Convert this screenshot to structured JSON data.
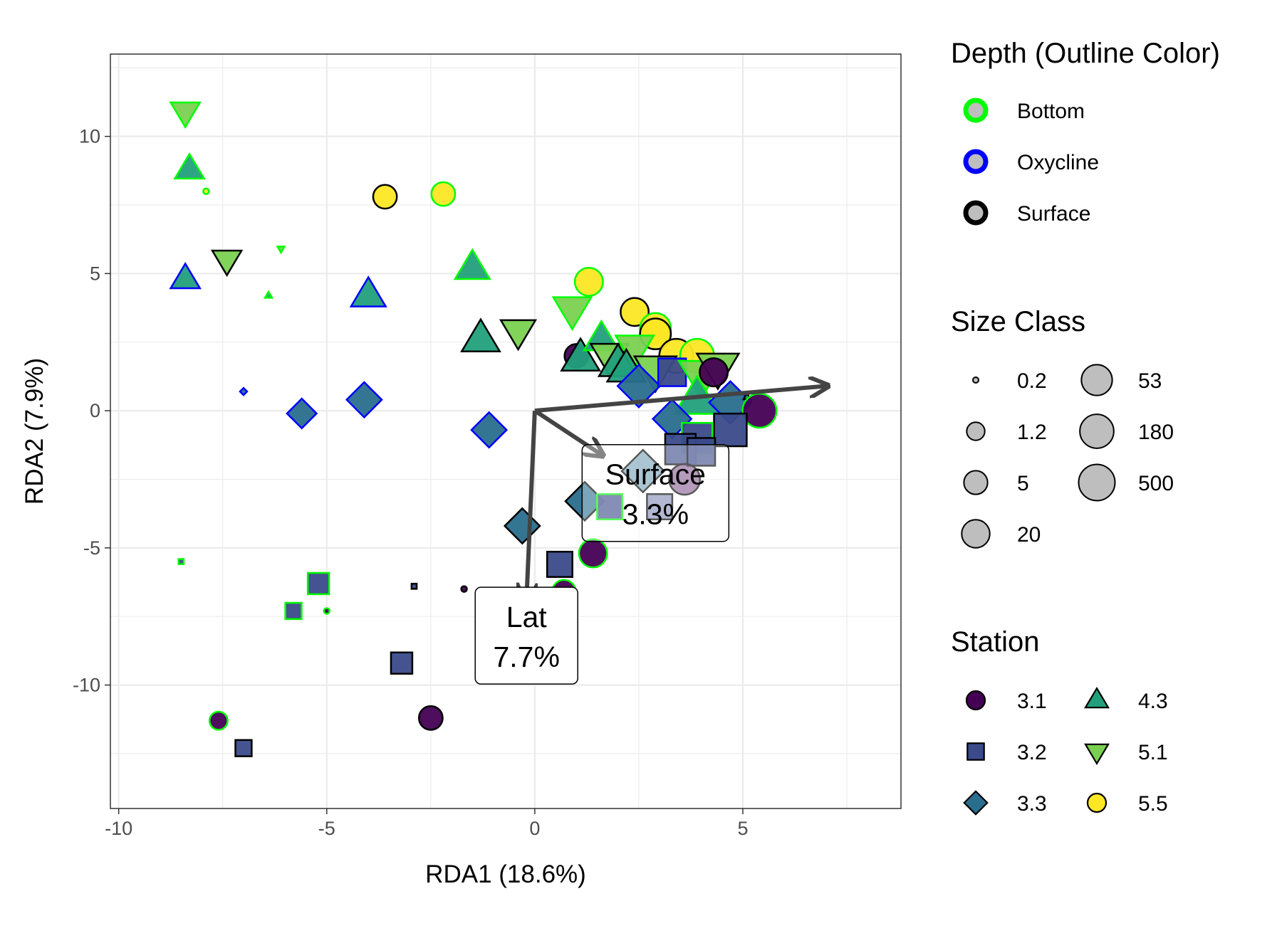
{
  "chart_data": {
    "type": "scatter",
    "xlabel": "RDA1 (18.6%)",
    "ylabel": "RDA2 (7.9%)",
    "xlim": [
      -10.2,
      8.8
    ],
    "ylim": [
      -14.5,
      13.0
    ],
    "xticks": [
      -10,
      -5,
      0,
      5
    ],
    "yticks": [
      10,
      5,
      0,
      -5,
      -10
    ],
    "grid": true,
    "colors": {
      "station": {
        "3.1": "#440154",
        "3.2": "#3b4a8a",
        "3.3": "#2a6e8e",
        "4.3": "#22a07c",
        "5.1": "#7ad151",
        "5.5": "#fde725"
      },
      "depth": {
        "Bottom": "#00ff00",
        "Oxycline": "#0000ff",
        "Surface": "#000000"
      },
      "arrow": "#444444"
    },
    "legends": {
      "depth": {
        "title": "Depth (Outline Color)",
        "items": [
          {
            "label": "Bottom",
            "key": "Bottom"
          },
          {
            "label": "Oxycline",
            "key": "Oxycline"
          },
          {
            "label": "Surface",
            "key": "Surface"
          }
        ]
      },
      "size": {
        "title": "Size Class",
        "items": [
          {
            "label": "0.2",
            "value": 0.2
          },
          {
            "label": "1.2",
            "value": 1.2
          },
          {
            "label": "5",
            "value": 5
          },
          {
            "label": "20",
            "value": 20
          },
          {
            "label": "53",
            "value": 53
          },
          {
            "label": "180",
            "value": 180
          },
          {
            "label": "500",
            "value": 500
          }
        ]
      },
      "station": {
        "title": "Station",
        "items": [
          {
            "label": "3.1",
            "shape": "circle"
          },
          {
            "label": "3.2",
            "shape": "square"
          },
          {
            "label": "3.3",
            "shape": "diamond"
          },
          {
            "label": "4.3",
            "shape": "triangle-up"
          },
          {
            "label": "5.1",
            "shape": "triangle-down"
          },
          {
            "label": "5.5",
            "shape": "circle"
          }
        ]
      }
    },
    "biplot": [
      {
        "name": "Lat",
        "label_line1": "Lat",
        "label_line2": "7.7%",
        "end": [
          -0.2,
          -6.9
        ],
        "label_pos": [
          -0.2,
          -8.2
        ]
      },
      {
        "name": "Surface",
        "label_line1": "Surface",
        "label_line2": "3.3%",
        "end": [
          1.6,
          -1.6
        ],
        "label_pos": [
          2.9,
          -3.0
        ]
      },
      {
        "name": "rda1",
        "label_line1": "",
        "label_line2": "",
        "end": [
          7.0,
          0.9
        ],
        "label_pos": null
      }
    ],
    "points": [
      {
        "x": -8.4,
        "y": 10.9,
        "station": "5.1",
        "depth": "Bottom",
        "size": 5
      },
      {
        "x": -8.3,
        "y": 8.8,
        "station": "4.3",
        "depth": "Bottom",
        "size": 5
      },
      {
        "x": -7.9,
        "y": 8.0,
        "station": "5.5",
        "depth": "Bottom",
        "size": 0.2
      },
      {
        "x": -3.6,
        "y": 7.8,
        "station": "5.5",
        "depth": "Surface",
        "size": 5
      },
      {
        "x": -2.2,
        "y": 7.9,
        "station": "5.5",
        "depth": "Bottom",
        "size": 5
      },
      {
        "x": -7.4,
        "y": 5.5,
        "station": "5.1",
        "depth": "Surface",
        "size": 5
      },
      {
        "x": -6.1,
        "y": 5.9,
        "station": "5.1",
        "depth": "Bottom",
        "size": 0.2
      },
      {
        "x": -8.4,
        "y": 4.8,
        "station": "4.3",
        "depth": "Oxycline",
        "size": 5
      },
      {
        "x": -6.4,
        "y": 4.2,
        "station": "4.3",
        "depth": "Bottom",
        "size": 0.2
      },
      {
        "x": -4.0,
        "y": 4.2,
        "station": "4.3",
        "depth": "Oxycline",
        "size": 20
      },
      {
        "x": -1.5,
        "y": 5.2,
        "station": "4.3",
        "depth": "Bottom",
        "size": 20
      },
      {
        "x": 1.3,
        "y": 4.7,
        "station": "5.5",
        "depth": "Bottom",
        "size": 20
      },
      {
        "x": -1.3,
        "y": 2.6,
        "station": "4.3",
        "depth": "Surface",
        "size": 53
      },
      {
        "x": -0.4,
        "y": 2.9,
        "station": "5.1",
        "depth": "Surface",
        "size": 20
      },
      {
        "x": 0.9,
        "y": 3.7,
        "station": "5.1",
        "depth": "Bottom",
        "size": 53
      },
      {
        "x": -7.0,
        "y": 0.7,
        "station": "3.3",
        "depth": "Oxycline",
        "size": 0.2
      },
      {
        "x": -5.6,
        "y": -0.1,
        "station": "3.3",
        "depth": "Oxycline",
        "size": 5
      },
      {
        "x": -4.1,
        "y": 0.4,
        "station": "3.3",
        "depth": "Oxycline",
        "size": 20
      },
      {
        "x": -1.1,
        "y": -0.7,
        "station": "3.3",
        "depth": "Oxycline",
        "size": 20
      },
      {
        "x": 2.4,
        "y": 3.6,
        "station": "5.5",
        "depth": "Surface",
        "size": 20
      },
      {
        "x": 2.9,
        "y": 3.0,
        "station": "5.5",
        "depth": "Bottom",
        "size": 53
      },
      {
        "x": 2.9,
        "y": 2.8,
        "station": "5.5",
        "depth": "Surface",
        "size": 53
      },
      {
        "x": 3.4,
        "y": 2.0,
        "station": "5.5",
        "depth": "Surface",
        "size": 180
      },
      {
        "x": 3.9,
        "y": 2.0,
        "station": "5.5",
        "depth": "Bottom",
        "size": 180
      },
      {
        "x": 1.0,
        "y": 2.0,
        "station": "3.1",
        "depth": "Surface",
        "size": 5
      },
      {
        "x": 1.1,
        "y": 1.9,
        "station": "4.3",
        "depth": "Surface",
        "size": 53
      },
      {
        "x": 1.6,
        "y": 2.6,
        "station": "4.3",
        "depth": "Bottom",
        "size": 20
      },
      {
        "x": 1.8,
        "y": 2.0,
        "station": "5.1",
        "depth": "Surface",
        "size": 53
      },
      {
        "x": 2.0,
        "y": 1.7,
        "station": "4.3",
        "depth": "Surface",
        "size": 53
      },
      {
        "x": 2.4,
        "y": 2.3,
        "station": "5.1",
        "depth": "Bottom",
        "size": 53
      },
      {
        "x": 2.2,
        "y": 1.5,
        "station": "4.3",
        "depth": "Surface",
        "size": 53
      },
      {
        "x": 2.9,
        "y": 1.5,
        "station": "5.1",
        "depth": "Surface",
        "size": 180
      },
      {
        "x": 2.5,
        "y": 0.9,
        "station": "3.3",
        "depth": "Oxycline",
        "size": 180
      },
      {
        "x": 3.3,
        "y": 1.4,
        "station": "3.2",
        "depth": "Oxycline",
        "size": 53
      },
      {
        "x": 4.0,
        "y": 1.3,
        "station": "5.1",
        "depth": "Bottom",
        "size": 500
      },
      {
        "x": 4.4,
        "y": 1.6,
        "station": "5.1",
        "depth": "Surface",
        "size": 180
      },
      {
        "x": 4.3,
        "y": 1.4,
        "station": "3.1",
        "depth": "Surface",
        "size": 20
      },
      {
        "x": 3.9,
        "y": 0.4,
        "station": "4.3",
        "depth": "Bottom",
        "size": 500
      },
      {
        "x": 4.7,
        "y": 0.3,
        "station": "3.3",
        "depth": "Oxycline",
        "size": 180
      },
      {
        "x": 5.1,
        "y": 0.5,
        "station": "4.3",
        "depth": "Surface",
        "size": 0.2
      },
      {
        "x": 5.4,
        "y": 0.0,
        "station": "3.1",
        "depth": "Bottom",
        "size": 180
      },
      {
        "x": 3.3,
        "y": -0.3,
        "station": "3.3",
        "depth": "Oxycline",
        "size": 53
      },
      {
        "x": 4.7,
        "y": -0.7,
        "station": "3.2",
        "depth": "Surface",
        "size": 500
      },
      {
        "x": 3.9,
        "y": -1.0,
        "station": "3.2",
        "depth": "Bottom",
        "size": 180
      },
      {
        "x": 3.5,
        "y": -1.4,
        "station": "3.2",
        "depth": "Surface",
        "size": 180
      },
      {
        "x": 4.0,
        "y": -1.5,
        "station": "3.2",
        "depth": "Surface",
        "size": 53
      },
      {
        "x": 3.6,
        "y": -2.5,
        "station": "3.1",
        "depth": "Surface",
        "size": 53
      },
      {
        "x": 2.6,
        "y": -2.2,
        "station": "3.3",
        "depth": "Surface",
        "size": 180
      },
      {
        "x": 3.0,
        "y": -3.5,
        "station": "3.2",
        "depth": "Surface",
        "size": 20
      },
      {
        "x": 1.2,
        "y": -3.3,
        "station": "3.3",
        "depth": "Surface",
        "size": 53
      },
      {
        "x": 1.8,
        "y": -3.5,
        "station": "3.2",
        "depth": "Bottom",
        "size": 20
      },
      {
        "x": -0.3,
        "y": -4.2,
        "station": "3.3",
        "depth": "Surface",
        "size": 20
      },
      {
        "x": 1.4,
        "y": -5.2,
        "station": "3.1",
        "depth": "Bottom",
        "size": 20
      },
      {
        "x": 0.6,
        "y": -5.6,
        "station": "3.2",
        "depth": "Surface",
        "size": 20
      },
      {
        "x": 0.7,
        "y": -6.6,
        "station": "3.1",
        "depth": "Bottom",
        "size": 5
      },
      {
        "x": -1.7,
        "y": -6.5,
        "station": "3.1",
        "depth": "Surface",
        "size": 0.2
      },
      {
        "x": -2.9,
        "y": -6.4,
        "station": "3.2",
        "depth": "Surface",
        "size": 0.2
      },
      {
        "x": -8.5,
        "y": -5.5,
        "station": "3.2",
        "depth": "Bottom",
        "size": 0.2
      },
      {
        "x": -5.2,
        "y": -6.3,
        "station": "3.2",
        "depth": "Bottom",
        "size": 5
      },
      {
        "x": -5.8,
        "y": -7.3,
        "station": "3.2",
        "depth": "Bottom",
        "size": 1.2
      },
      {
        "x": -5.0,
        "y": -7.3,
        "station": "3.1",
        "depth": "Bottom",
        "size": 0.2
      },
      {
        "x": -3.2,
        "y": -9.2,
        "station": "3.2",
        "depth": "Surface",
        "size": 5
      },
      {
        "x": -2.5,
        "y": -11.2,
        "station": "3.1",
        "depth": "Surface",
        "size": 5
      },
      {
        "x": -7.6,
        "y": -11.3,
        "station": "3.1",
        "depth": "Bottom",
        "size": 1.2
      },
      {
        "x": -7.0,
        "y": -12.3,
        "station": "3.2",
        "depth": "Surface",
        "size": 1.2
      }
    ]
  }
}
